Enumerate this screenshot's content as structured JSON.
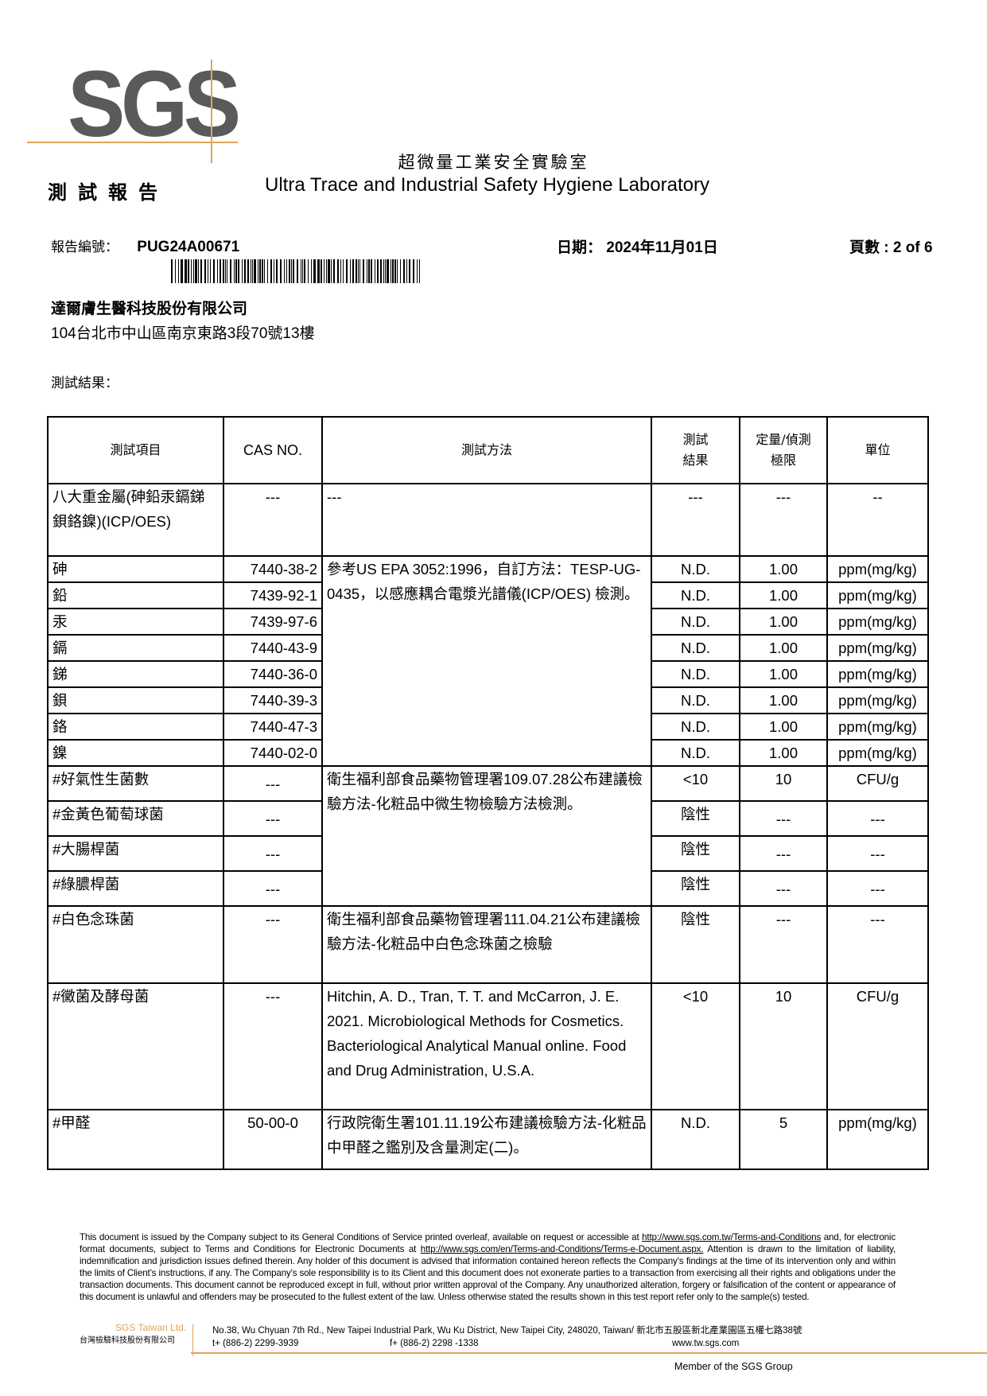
{
  "logo": {
    "text": "SGS",
    "color": "#5a5a5a",
    "accent_color": "#e0a458"
  },
  "header": {
    "lab_name_cn": "超微量工業安全實驗室",
    "report_title": "測試報告",
    "lab_name_en": "Ultra Trace and Industrial Safety Hygiene Laboratory",
    "report_no_label": "報告編號：",
    "report_no": "PUG24A00671",
    "date_label": "日期：",
    "date": "2024年11月01日",
    "page_label": "頁數 :",
    "page": "2 of 6"
  },
  "client": {
    "company": "達爾膚生醫科技股份有限公司",
    "address": "104台北市中山區南京東路3段70號13樓"
  },
  "results_label": "測試結果：",
  "table": {
    "headers": {
      "item": "測試項目",
      "cas": "CAS NO.",
      "method": "測試方法",
      "result_1": "測試",
      "result_2": "結果",
      "limit_1": "定量/偵測",
      "limit_2": "極限",
      "unit": "單位"
    },
    "group": {
      "item": "八大重金屬(砷鉛汞鎘銻鋇鉻鎳)(ICP/OES)",
      "cas": "---",
      "method": "---",
      "result": "---",
      "limit": "---",
      "unit": "--"
    },
    "metals_method": "參考US EPA 3052:1996，自訂方法：TESP-UG-0435，以感應耦合電漿光譜儀(ICP/OES) 檢測。",
    "metals": [
      {
        "item": "砷",
        "cas": "7440-38-2",
        "result": "N.D.",
        "limit": "1.00",
        "unit": "ppm(mg/kg)"
      },
      {
        "item": "鉛",
        "cas": "7439-92-1",
        "result": "N.D.",
        "limit": "1.00",
        "unit": "ppm(mg/kg)"
      },
      {
        "item": "汞",
        "cas": "7439-97-6",
        "result": "N.D.",
        "limit": "1.00",
        "unit": "ppm(mg/kg)"
      },
      {
        "item": "鎘",
        "cas": "7440-43-9",
        "result": "N.D.",
        "limit": "1.00",
        "unit": "ppm(mg/kg)"
      },
      {
        "item": "銻",
        "cas": "7440-36-0",
        "result": "N.D.",
        "limit": "1.00",
        "unit": "ppm(mg/kg)"
      },
      {
        "item": "鋇",
        "cas": "7440-39-3",
        "result": "N.D.",
        "limit": "1.00",
        "unit": "ppm(mg/kg)"
      },
      {
        "item": "鉻",
        "cas": "7440-47-3",
        "result": "N.D.",
        "limit": "1.00",
        "unit": "ppm(mg/kg)"
      },
      {
        "item": "鎳",
        "cas": "7440-02-0",
        "result": "N.D.",
        "limit": "1.00",
        "unit": "ppm(mg/kg)"
      }
    ],
    "micro_method": "衛生福利部食品藥物管理署109.07.28公布建議檢驗方法-化粧品中微生物檢驗方法檢測。",
    "micro": [
      {
        "item": "#好氣性生菌數",
        "cas": "---",
        "result": "<10",
        "limit": "10",
        "unit": "CFU/g"
      },
      {
        "item": "#金黃色葡萄球菌",
        "cas": "---",
        "result": "陰性",
        "limit": "---",
        "unit": "---"
      },
      {
        "item": "#大腸桿菌",
        "cas": "---",
        "result": "陰性",
        "limit": "---",
        "unit": "---"
      },
      {
        "item": "#綠膿桿菌",
        "cas": "---",
        "result": "陰性",
        "limit": "---",
        "unit": "---"
      }
    ],
    "candida": {
      "item": "#白色念珠菌",
      "cas": "---",
      "method": "衛生福利部食品藥物管理署111.04.21公布建議檢驗方法-化粧品中白色念珠菌之檢驗",
      "result": "陰性",
      "limit": "---",
      "unit": "---"
    },
    "mold": {
      "item": "#黴菌及酵母菌",
      "cas": "---",
      "method": "Hitchin, A. D., Tran, T. T. and McCarron, J. E. 2021. Microbiological Methods for Cosmetics. Bacteriological Analytical Manual online. Food and Drug Administration, U.S.A.",
      "result": "<10",
      "limit": "10",
      "unit": "CFU/g"
    },
    "formaldehyde": {
      "item": "#甲醛",
      "cas": "50-00-0",
      "method": "行政院衛生署101.11.19公布建議檢驗方法-化粧品中甲醛之鑑別及含量測定(二)。",
      "result": "N.D.",
      "limit": "5",
      "unit": "ppm(mg/kg)"
    }
  },
  "footer": {
    "p1": "This document is issued by the Company subject to its General Conditions of Service printed overleaf, available on request or accessible at ",
    "link1": "http://www.sgs.com.tw/Terms-and-Conditions",
    "p2": " and, for electronic format documents, subject to Terms and Conditions for Electronic Documents at ",
    "link2": "http://www.sgs.com/en/Terms-and-Conditions/Terms-e-Document.aspx.",
    "p3": " Attention is drawn to the limitation of liability, indemnification and jurisdiction issues defined therein. Any holder of this document is advised that information contained hereon reflects the Company's findings at the time of its intervention only and within the limits of Client's instructions, if any. The Company's sole responsibility is to its Client and this document does not exonerate parties to a transaction from exercising all their rights and obligations under the transaction documents. This document cannot be reproduced except in full, without prior written approval of the Company. Any unauthorized alteration, forgery or falsification of the content or appearance of this document is unlawful and offenders may be prosecuted to the fullest extent of the law. Unless otherwise stated the results shown in this test report refer only to the sample(s) tested.",
    "company_en": "SGS Taiwan Ltd.",
    "company_cn": "台灣檢驗科技股份有限公司",
    "address": "No.38, Wu Chyuan 7th Rd., New Taipei Industrial Park, Wu Ku District, New Taipei City, 248020, Taiwan/ 新北市五股區新北產業園區五權七路38號",
    "tel": "t+ (886-2) 2299-3939",
    "fax": "f+ (886-2) 2298 -1338",
    "web": "www.tw.sgs.com",
    "member": "Member of the SGS Group"
  }
}
